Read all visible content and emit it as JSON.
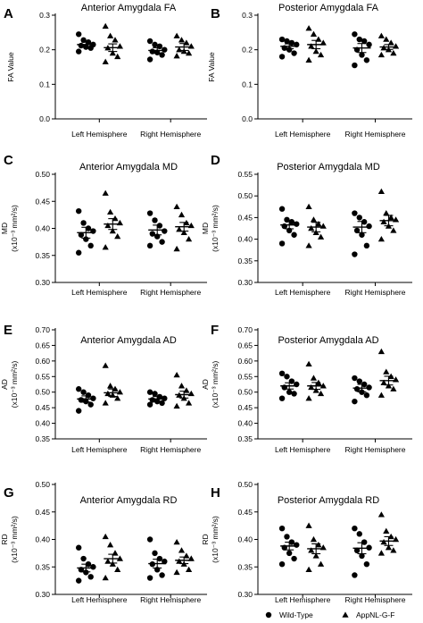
{
  "legend": [
    {
      "label": "Wild-Type",
      "marker": "circle"
    },
    {
      "label": "AppNL-G-F",
      "marker": "triangle"
    }
  ],
  "chart_data": [
    {
      "panel": "A",
      "type": "scatter",
      "title": "Anterior Amygdala FA",
      "ylabel": "FA  Value",
      "ylabel_sub": "",
      "ylim": [
        0,
        0.3
      ],
      "yticks": [
        "0.0",
        "0.1",
        "0.2",
        "0.3"
      ],
      "categories": [
        "Left Hemisphere",
        "Right Hemisphere"
      ],
      "series": [
        {
          "name": "Wild-Type",
          "marker": "circle",
          "mean": [
            0.215,
            0.198
          ],
          "sem": [
            0.007,
            0.008
          ],
          "values": [
            [
              0.245,
              0.228,
              0.222,
              0.215,
              0.212,
              0.208,
              0.205,
              0.195
            ],
            [
              0.225,
              0.215,
              0.21,
              0.2,
              0.195,
              0.192,
              0.185,
              0.172
            ]
          ]
        },
        {
          "name": "AppNL-G-F",
          "marker": "triangle",
          "mean": [
            0.206,
            0.208
          ],
          "sem": [
            0.011,
            0.01
          ],
          "values": [
            [
              0.268,
              0.24,
              0.228,
              0.21,
              0.205,
              0.19,
              0.18,
              0.165
            ],
            [
              0.24,
              0.228,
              0.22,
              0.21,
              0.2,
              0.195,
              0.19,
              0.182
            ]
          ]
        }
      ]
    },
    {
      "panel": "B",
      "type": "scatter",
      "title": "Posterior Amygdala FA",
      "ylabel": "FA  Value",
      "ylabel_sub": "",
      "ylim": [
        0,
        0.3
      ],
      "yticks": [
        "0.0",
        "0.1",
        "0.2",
        "0.3"
      ],
      "categories": [
        "Left Hemisphere",
        "Right Hemisphere"
      ],
      "series": [
        {
          "name": "Wild-Type",
          "marker": "circle",
          "mean": [
            0.21,
            0.205
          ],
          "sem": [
            0.007,
            0.013
          ],
          "values": [
            [
              0.23,
              0.225,
              0.22,
              0.215,
              0.205,
              0.2,
              0.19,
              0.18
            ],
            [
              0.245,
              0.23,
              0.225,
              0.215,
              0.2,
              0.185,
              0.17,
              0.155
            ]
          ]
        },
        {
          "name": "AppNL-G-F",
          "marker": "triangle",
          "mean": [
            0.215,
            0.208
          ],
          "sem": [
            0.012,
            0.007
          ],
          "values": [
            [
              0.262,
              0.245,
              0.23,
              0.22,
              0.21,
              0.195,
              0.185,
              0.17
            ],
            [
              0.24,
              0.23,
              0.22,
              0.21,
              0.205,
              0.2,
              0.19,
              0.185
            ]
          ]
        }
      ]
    },
    {
      "panel": "C",
      "type": "scatter",
      "title": "Anterior Amygdala  MD",
      "ylabel": "MD",
      "ylabel_sub": "(x10⁻³ mm²/s)",
      "ylim": [
        0.3,
        0.5
      ],
      "yticks": [
        "0.30",
        "0.35",
        "0.40",
        "0.45",
        "0.50"
      ],
      "categories": [
        "Left Hemisphere",
        "Right Hemisphere"
      ],
      "series": [
        {
          "name": "Wild-Type",
          "marker": "circle",
          "mean": [
            0.392,
            0.397
          ],
          "sem": [
            0.01,
            0.009
          ],
          "values": [
            [
              0.432,
              0.41,
              0.4,
              0.395,
              0.388,
              0.38,
              0.368,
              0.355
            ],
            [
              0.428,
              0.415,
              0.405,
              0.395,
              0.39,
              0.385,
              0.375,
              0.368
            ]
          ]
        },
        {
          "name": "AppNL-G-F",
          "marker": "triangle",
          "mean": [
            0.408,
            0.403
          ],
          "sem": [
            0.01,
            0.008
          ],
          "values": [
            [
              0.465,
              0.43,
              0.418,
              0.41,
              0.405,
              0.395,
              0.385,
              0.365
            ],
            [
              0.44,
              0.425,
              0.41,
              0.405,
              0.398,
              0.392,
              0.38,
              0.362
            ]
          ]
        }
      ]
    },
    {
      "panel": "D",
      "type": "scatter",
      "title": "Posterior Amygdala MD",
      "ylabel": "MD",
      "ylabel_sub": "(x10⁻³ mm²/s)",
      "ylim": [
        0.3,
        0.55
      ],
      "yticks": [
        "0.30",
        "0.35",
        "0.40",
        "0.45",
        "0.50",
        "0.55"
      ],
      "categories": [
        "Left Hemisphere",
        "Right Hemisphere"
      ],
      "series": [
        {
          "name": "Wild-Type",
          "marker": "circle",
          "mean": [
            0.433,
            0.428
          ],
          "sem": [
            0.009,
            0.013
          ],
          "values": [
            [
              0.47,
              0.445,
              0.44,
              0.435,
              0.43,
              0.42,
              0.41,
              0.39
            ],
            [
              0.46,
              0.45,
              0.44,
              0.43,
              0.42,
              0.41,
              0.385,
              0.365
            ]
          ]
        },
        {
          "name": "AppNL-G-F",
          "marker": "triangle",
          "mean": [
            0.428,
            0.443
          ],
          "sem": [
            0.011,
            0.012
          ],
          "values": [
            [
              0.475,
              0.445,
              0.435,
              0.43,
              0.425,
              0.415,
              0.405,
              0.385
            ],
            [
              0.51,
              0.46,
              0.45,
              0.445,
              0.44,
              0.43,
              0.42,
              0.4
            ]
          ]
        }
      ]
    },
    {
      "panel": "E",
      "type": "scatter",
      "title": "Anterior Amygdala AD",
      "ylabel": "AD",
      "ylabel_sub": "(x10⁻³ mm²/s)",
      "ylim": [
        0.35,
        0.7
      ],
      "yticks": [
        "0.35",
        "0.40",
        "0.45",
        "0.50",
        "0.55",
        "0.60",
        "0.65",
        "0.70"
      ],
      "categories": [
        "Left Hemisphere",
        "Right Hemisphere"
      ],
      "series": [
        {
          "name": "Wild-Type",
          "marker": "circle",
          "mean": [
            0.478,
            0.478
          ],
          "sem": [
            0.01,
            0.008
          ],
          "values": [
            [
              0.51,
              0.5,
              0.49,
              0.48,
              0.475,
              0.47,
              0.46,
              0.44
            ],
            [
              0.5,
              0.495,
              0.485,
              0.48,
              0.475,
              0.47,
              0.465,
              0.46
            ]
          ]
        },
        {
          "name": "AppNL-G-F",
          "marker": "triangle",
          "mean": [
            0.498,
            0.492
          ],
          "sem": [
            0.012,
            0.011
          ],
          "values": [
            [
              0.585,
              0.52,
              0.51,
              0.5,
              0.495,
              0.49,
              0.48,
              0.465
            ],
            [
              0.555,
              0.52,
              0.505,
              0.495,
              0.49,
              0.48,
              0.465,
              0.455
            ]
          ]
        }
      ]
    },
    {
      "panel": "F",
      "type": "scatter",
      "title": "Posterior Amygdala AD",
      "ylabel": "AD",
      "ylabel_sub": "(x10⁻³ mm²/s)",
      "ylim": [
        0.35,
        0.7
      ],
      "yticks": [
        "0.35",
        "0.40",
        "0.45",
        "0.50",
        "0.55",
        "0.60",
        "0.65",
        "0.70"
      ],
      "categories": [
        "Left Hemisphere",
        "Right Hemisphere"
      ],
      "series": [
        {
          "name": "Wild-Type",
          "marker": "circle",
          "mean": [
            0.52,
            0.513
          ],
          "sem": [
            0.01,
            0.012
          ],
          "values": [
            [
              0.56,
              0.55,
              0.535,
              0.525,
              0.515,
              0.5,
              0.495,
              0.48
            ],
            [
              0.545,
              0.535,
              0.525,
              0.515,
              0.51,
              0.5,
              0.49,
              0.47
            ]
          ]
        },
        {
          "name": "AppNL-G-F",
          "marker": "triangle",
          "mean": [
            0.52,
            0.537
          ],
          "sem": [
            0.011,
            0.014
          ],
          "values": [
            [
              0.59,
              0.545,
              0.53,
              0.52,
              0.515,
              0.505,
              0.495,
              0.48
            ],
            [
              0.63,
              0.565,
              0.55,
              0.54,
              0.53,
              0.52,
              0.51,
              0.49
            ]
          ]
        }
      ]
    },
    {
      "panel": "G",
      "type": "scatter",
      "title": "Anterior Amygdala RD",
      "ylabel": "RD",
      "ylabel_sub": "(x10⁻³ mm²/s)",
      "ylim": [
        0.3,
        0.5
      ],
      "yticks": [
        "0.30",
        "0.35",
        "0.40",
        "0.45",
        "0.50"
      ],
      "categories": [
        "Left Hemisphere",
        "Right Hemisphere"
      ],
      "series": [
        {
          "name": "Wild-Type",
          "marker": "circle",
          "mean": [
            0.348,
            0.356
          ],
          "sem": [
            0.007,
            0.008
          ],
          "values": [
            [
              0.385,
              0.365,
              0.355,
              0.35,
              0.345,
              0.34,
              0.332,
              0.325
            ],
            [
              0.4,
              0.375,
              0.365,
              0.36,
              0.355,
              0.345,
              0.335,
              0.33
            ]
          ]
        },
        {
          "name": "AppNL-G-F",
          "marker": "triangle",
          "mean": [
            0.365,
            0.362
          ],
          "sem": [
            0.008,
            0.006
          ],
          "values": [
            [
              0.405,
              0.39,
              0.375,
              0.365,
              0.36,
              0.355,
              0.345,
              0.33
            ],
            [
              0.395,
              0.38,
              0.37,
              0.365,
              0.36,
              0.355,
              0.345,
              0.34
            ]
          ]
        }
      ]
    },
    {
      "panel": "H",
      "type": "scatter",
      "title": "Posterior Amygdala RD",
      "ylabel": "RD",
      "ylabel_sub": "(x10⁻³ mm²/s)",
      "ylim": [
        0.3,
        0.5
      ],
      "yticks": [
        "0.30",
        "0.35",
        "0.40",
        "0.45",
        "0.50"
      ],
      "categories": [
        "Left Hemisphere",
        "Right Hemisphere"
      ],
      "series": [
        {
          "name": "Wild-Type",
          "marker": "circle",
          "mean": [
            0.388,
            0.384
          ],
          "sem": [
            0.007,
            0.01
          ],
          "values": [
            [
              0.42,
              0.405,
              0.395,
              0.39,
              0.385,
              0.375,
              0.365,
              0.355
            ],
            [
              0.42,
              0.41,
              0.395,
              0.385,
              0.38,
              0.37,
              0.355,
              0.335
            ]
          ]
        },
        {
          "name": "AppNL-G-F",
          "marker": "triangle",
          "mean": [
            0.383,
            0.397
          ],
          "sem": [
            0.009,
            0.008
          ],
          "values": [
            [
              0.425,
              0.4,
              0.39,
              0.385,
              0.38,
              0.37,
              0.355,
              0.345
            ],
            [
              0.445,
              0.415,
              0.405,
              0.4,
              0.395,
              0.385,
              0.38,
              0.375
            ]
          ]
        }
      ]
    }
  ]
}
